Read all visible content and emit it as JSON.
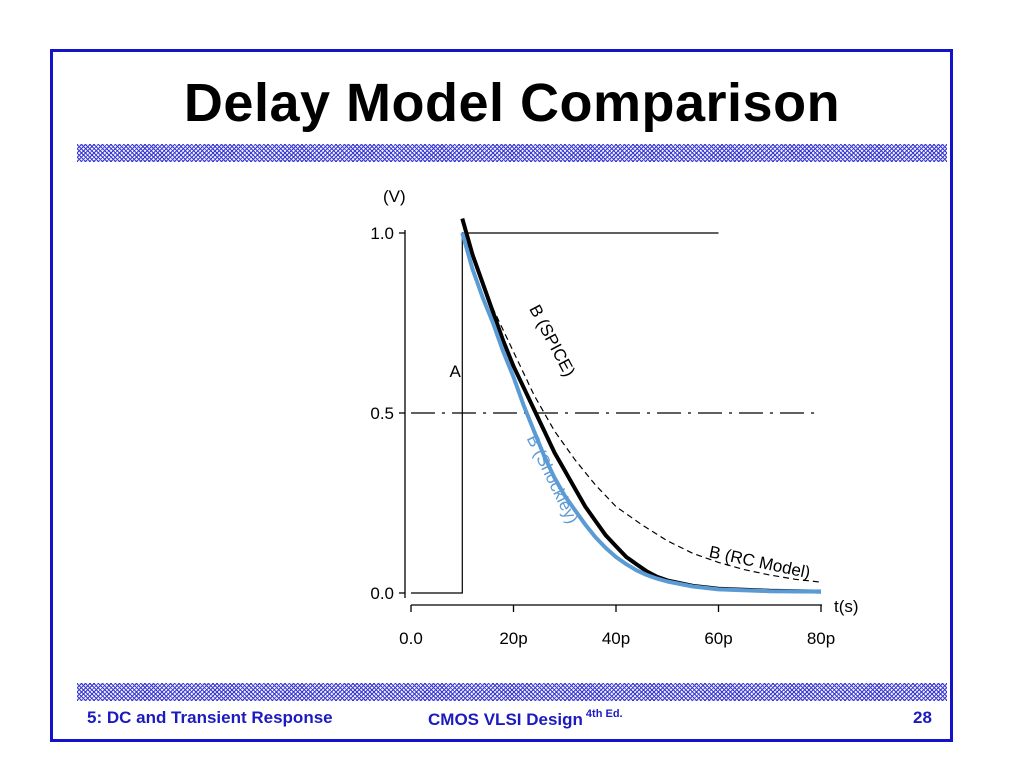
{
  "slide": {
    "title": "Delay Model Comparison",
    "footer": {
      "left": "5: DC and Transient Response",
      "center": "CMOS VLSI Design",
      "center_sup": "4th Ed.",
      "page_number": "28"
    }
  },
  "colors": {
    "frame": "#1313c8",
    "footer_text": "#1b1bc0",
    "shockley": "#5b9bd5",
    "spice": "#000000"
  },
  "chart_data": {
    "type": "line",
    "y_unit_label": "(V)",
    "x_unit_label": "t(s)",
    "xlim": [
      0,
      80
    ],
    "ylim": [
      0,
      1.0
    ],
    "x_tick_labels": [
      "0.0",
      "20p",
      "40p",
      "60p",
      "80p"
    ],
    "x_ticks": [
      0,
      20,
      40,
      60,
      80
    ],
    "y_tick_labels": [
      "0.0",
      "0.5",
      "1.0"
    ],
    "y_ticks": [
      0,
      0.5,
      1.0
    ],
    "series": [
      {
        "name": "A",
        "style": "thin-black",
        "points": [
          [
            0,
            0
          ],
          [
            10,
            0
          ],
          [
            10,
            1.0
          ],
          [
            60,
            1.0
          ]
        ]
      },
      {
        "name": "B (SPICE)",
        "style": "thick-black",
        "points": [
          [
            10,
            1.04
          ],
          [
            12,
            0.94
          ],
          [
            14,
            0.86
          ],
          [
            16,
            0.78
          ],
          [
            18,
            0.7
          ],
          [
            20,
            0.63
          ],
          [
            22,
            0.57
          ],
          [
            24,
            0.51
          ],
          [
            26,
            0.45
          ],
          [
            28,
            0.39
          ],
          [
            30,
            0.34
          ],
          [
            32,
            0.29
          ],
          [
            34,
            0.24
          ],
          [
            36,
            0.2
          ],
          [
            38,
            0.16
          ],
          [
            40,
            0.13
          ],
          [
            42,
            0.1
          ],
          [
            44,
            0.08
          ],
          [
            46,
            0.06
          ],
          [
            48,
            0.045
          ],
          [
            50,
            0.035
          ],
          [
            55,
            0.02
          ],
          [
            60,
            0.012
          ],
          [
            70,
            0.006
          ],
          [
            80,
            0.004
          ]
        ]
      },
      {
        "name": "B (Shockley)",
        "style": "thick-blue",
        "points": [
          [
            10,
            1.0
          ],
          [
            12,
            0.9
          ],
          [
            14,
            0.82
          ],
          [
            16,
            0.75
          ],
          [
            18,
            0.67
          ],
          [
            20,
            0.6
          ],
          [
            22,
            0.52
          ],
          [
            24,
            0.45
          ],
          [
            26,
            0.38
          ],
          [
            28,
            0.32
          ],
          [
            30,
            0.27
          ],
          [
            32,
            0.23
          ],
          [
            34,
            0.19
          ],
          [
            36,
            0.155
          ],
          [
            38,
            0.125
          ],
          [
            40,
            0.1
          ],
          [
            42,
            0.08
          ],
          [
            44,
            0.063
          ],
          [
            46,
            0.05
          ],
          [
            48,
            0.04
          ],
          [
            50,
            0.032
          ],
          [
            55,
            0.018
          ],
          [
            60,
            0.01
          ],
          [
            70,
            0.005
          ],
          [
            80,
            0.004
          ]
        ]
      },
      {
        "name": "B (RC Model)",
        "style": "dashed-black",
        "points": [
          [
            10,
            1.0
          ],
          [
            13,
            0.9
          ],
          [
            16,
            0.79
          ],
          [
            20,
            0.67
          ],
          [
            24,
            0.55
          ],
          [
            28,
            0.45
          ],
          [
            32,
            0.37
          ],
          [
            36,
            0.3
          ],
          [
            40,
            0.24
          ],
          [
            45,
            0.19
          ],
          [
            50,
            0.145
          ],
          [
            55,
            0.11
          ],
          [
            60,
            0.085
          ],
          [
            65,
            0.065
          ],
          [
            70,
            0.05
          ],
          [
            75,
            0.038
          ],
          [
            80,
            0.03
          ]
        ]
      },
      {
        "name": "0.5 threshold",
        "style": "dash-dot",
        "points": [
          [
            0,
            0.5
          ],
          [
            80,
            0.5
          ]
        ]
      }
    ],
    "annotations": [
      {
        "text": "A",
        "at": [
          7.5,
          0.6
        ]
      },
      {
        "text": "B (SPICE)",
        "at": [
          23,
          0.79
        ]
      },
      {
        "text": "B (Shockley)",
        "at": [
          22.5,
          0.43
        ]
      },
      {
        "text": "B (RC Model)",
        "at": [
          58,
          0.1
        ]
      }
    ]
  }
}
